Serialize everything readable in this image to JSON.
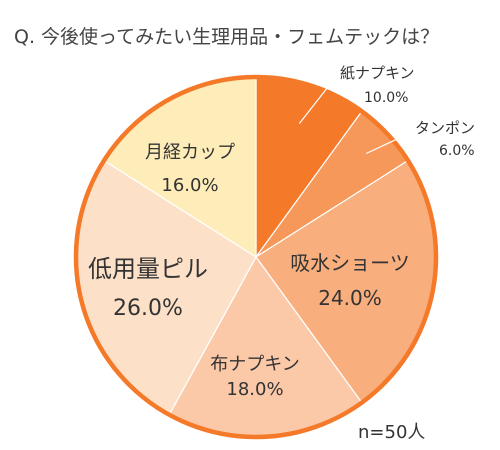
{
  "chart_data": {
    "type": "pie",
    "title": "Q. 今後使ってみたい生理用品・フェムテックは？",
    "note": "n=50人",
    "start_angle_deg": 0,
    "direction": "clockwise",
    "slices": [
      {
        "label": "紙ナプキン",
        "value": 10.0,
        "value_label": "10.0%",
        "color": "#f47a2a"
      },
      {
        "label": "タンポン",
        "value": 6.0,
        "value_label": "6.0%",
        "color": "#f6985a"
      },
      {
        "label": "吸水ショーツ",
        "value": 24.0,
        "value_label": "24.0%",
        "color": "#f9ae7d"
      },
      {
        "label": "布ナプキン",
        "value": 18.0,
        "value_label": "18.0%",
        "color": "#fbc9a8"
      },
      {
        "label": "低用量ピル",
        "value": 26.0,
        "value_label": "26.0%",
        "color": "#fde0c8"
      },
      {
        "label": "月経カップ",
        "value": 16.0,
        "value_label": "16.0%",
        "color": "#feecb9"
      }
    ],
    "outline_color": "#f47a2a"
  }
}
